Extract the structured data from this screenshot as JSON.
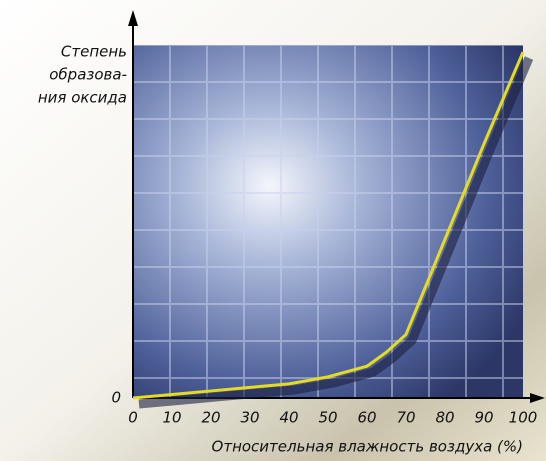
{
  "chart_data": {
    "type": "line",
    "ylabel": [
      "Степень",
      "образова-",
      "ния оксида"
    ],
    "xlabel": "Относительная влажность воздуха (%)",
    "x": [
      0,
      10,
      20,
      30,
      40,
      50,
      60,
      65,
      70,
      80,
      90,
      100
    ],
    "series": [
      {
        "color": "#e6dc1e",
        "values": [
          0,
          1,
          2,
          3,
          4,
          6,
          9,
          13,
          18,
          45,
          72,
          98
        ]
      }
    ],
    "xlim": [
      0,
      100
    ],
    "xticks": [
      0,
      10,
      20,
      30,
      40,
      50,
      60,
      70,
      80,
      90,
      100
    ],
    "ylim": [
      0,
      100
    ],
    "yticks": [
      0
    ]
  }
}
